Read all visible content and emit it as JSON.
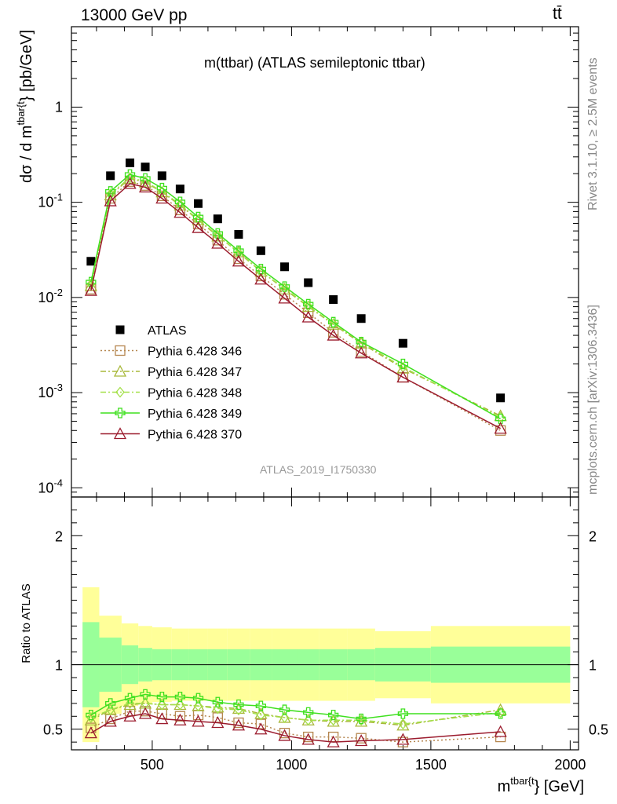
{
  "header": {
    "left": "13000 GeV pp",
    "right": "tt̄"
  },
  "side_labels": {
    "rivet": "Rivet 3.1.10, ≥ 2.5M events",
    "mcplots": "mcplots.cern.ch [arXiv:1306.3436]"
  },
  "chart_data": [
    {
      "type": "scatter",
      "title": "m(ttbar) (ATLAS semileptonic ttbar)",
      "watermark": "ATLAS_2019_I1750330",
      "ylabel": "dσ / d m^{tbar{t}} [pb/GeV]",
      "yscale": "log",
      "ylim": [
        8e-05,
        7
      ],
      "xlim": [
        210,
        2030
      ],
      "y_tick_labels": [
        "10^-4",
        "10^-3",
        "10^-2",
        "10^-1",
        "1"
      ],
      "grid": false,
      "legend_position": "middle-left",
      "x": [
        280,
        350,
        420,
        475,
        535,
        600,
        665,
        735,
        810,
        890,
        975,
        1060,
        1150,
        1250,
        1400,
        1750
      ],
      "series": [
        {
          "name": "ATLAS",
          "color": "#000000",
          "marker": "square-filled",
          "values": [
            0.024,
            0.19,
            0.26,
            0.235,
            0.19,
            0.138,
            0.097,
            0.067,
            0.046,
            0.031,
            0.021,
            0.0143,
            0.0095,
            0.006,
            0.0033,
            0.00088
          ]
        },
        {
          "name": "Pythia 6.428 346",
          "color": "#b5864f",
          "marker": "square-open",
          "line": "dotted",
          "values": [
            0.0122,
            0.11,
            0.165,
            0.15,
            0.117,
            0.083,
            0.059,
            0.04,
            0.0255,
            0.0168,
            0.0108,
            0.0069,
            0.0043,
            0.0027,
            0.00145,
            0.0004
          ]
        },
        {
          "name": "Pythia 6.428 347",
          "color": "#a8b83a",
          "marker": "triangle-open",
          "line": "dashdot",
          "values": [
            0.0133,
            0.119,
            0.178,
            0.162,
            0.128,
            0.093,
            0.065,
            0.044,
            0.03,
            0.0188,
            0.0122,
            0.008,
            0.0052,
            0.0033,
            0.0018,
            0.00057
          ]
        },
        {
          "name": "Pythia 6.428 348",
          "color": "#a4e04a",
          "marker": "diamond-open",
          "line": "dashdot",
          "values": [
            0.0138,
            0.122,
            0.182,
            0.165,
            0.13,
            0.095,
            0.066,
            0.045,
            0.0295,
            0.0187,
            0.0125,
            0.0081,
            0.0053,
            0.0034,
            0.00185,
            0.00055
          ]
        },
        {
          "name": "Pythia 6.428 349",
          "color": "#3fe01f",
          "marker": "cross-open",
          "line": "solid",
          "values": [
            0.0145,
            0.13,
            0.196,
            0.178,
            0.141,
            0.101,
            0.07,
            0.047,
            0.031,
            0.0199,
            0.013,
            0.0085,
            0.0055,
            0.0034,
            0.002,
            0.00053
          ]
        },
        {
          "name": "Pythia 6.428 370",
          "color": "#9b1b2d",
          "marker": "triangle-open",
          "line": "solid",
          "values": [
            0.0118,
            0.103,
            0.157,
            0.144,
            0.11,
            0.078,
            0.054,
            0.037,
            0.024,
            0.0155,
            0.0098,
            0.0062,
            0.004,
            0.0026,
            0.00145,
            0.00042
          ]
        }
      ]
    },
    {
      "type": "line",
      "ylabel": "Ratio to ATLAS",
      "xlabel": "m^{tbar{t}} [GeV]",
      "xlim": [
        210,
        2030
      ],
      "ylim": [
        0.34,
        2.3
      ],
      "x_ticks": [
        500,
        1000,
        1500,
        2000
      ],
      "y_ticks": [
        0.5,
        1,
        2
      ],
      "reference": 1,
      "bins": [
        250,
        310,
        390,
        450,
        500,
        570,
        630,
        700,
        770,
        850,
        930,
        1020,
        1100,
        1200,
        1300,
        1500,
        2000
      ],
      "band_outer": [
        0.6,
        0.38,
        0.32,
        0.3,
        0.29,
        0.28,
        0.28,
        0.28,
        0.28,
        0.28,
        0.28,
        0.28,
        0.28,
        0.28,
        0.26,
        0.3
      ],
      "band_inner": [
        0.33,
        0.21,
        0.15,
        0.13,
        0.12,
        0.12,
        0.12,
        0.12,
        0.12,
        0.12,
        0.12,
        0.12,
        0.12,
        0.12,
        0.13,
        0.14
      ],
      "x": [
        280,
        350,
        420,
        475,
        535,
        600,
        665,
        735,
        810,
        890,
        975,
        1060,
        1150,
        1250,
        1400,
        1750
      ],
      "series": [
        {
          "name": "Pythia 6.428 346",
          "color": "#b5864f",
          "marker": "square-open",
          "line": "dotted",
          "values": [
            0.51,
            0.58,
            0.64,
            0.64,
            0.62,
            0.6,
            0.61,
            0.59,
            0.55,
            0.54,
            0.47,
            0.44,
            0.44,
            0.43,
            0.4,
            0.44
          ]
        },
        {
          "name": "Pythia 6.428 347",
          "color": "#a8b83a",
          "marker": "triangle-open",
          "line": "dashdot",
          "values": [
            0.57,
            0.65,
            0.69,
            0.7,
            0.69,
            0.69,
            0.68,
            0.67,
            0.66,
            0.62,
            0.59,
            0.57,
            0.56,
            0.56,
            0.53,
            0.65
          ]
        },
        {
          "name": "Pythia 6.428 348",
          "color": "#a4e04a",
          "marker": "diamond-open",
          "line": "dashdot",
          "values": [
            0.59,
            0.65,
            0.7,
            0.7,
            0.69,
            0.69,
            0.68,
            0.66,
            0.65,
            0.61,
            0.59,
            0.57,
            0.57,
            0.57,
            0.54,
            0.63
          ]
        },
        {
          "name": "Pythia 6.428 349",
          "color": "#3fe01f",
          "marker": "cross-open",
          "line": "solid",
          "values": [
            0.61,
            0.7,
            0.74,
            0.77,
            0.75,
            0.75,
            0.74,
            0.71,
            0.69,
            0.68,
            0.65,
            0.63,
            0.61,
            0.58,
            0.62,
            0.62
          ]
        },
        {
          "name": "Pythia 6.428 370",
          "color": "#9b1b2d",
          "marker": "triangle-open",
          "line": "solid",
          "values": [
            0.47,
            0.56,
            0.6,
            0.62,
            0.58,
            0.57,
            0.56,
            0.55,
            0.53,
            0.5,
            0.45,
            0.42,
            0.4,
            0.41,
            0.42,
            0.48
          ]
        }
      ]
    }
  ]
}
